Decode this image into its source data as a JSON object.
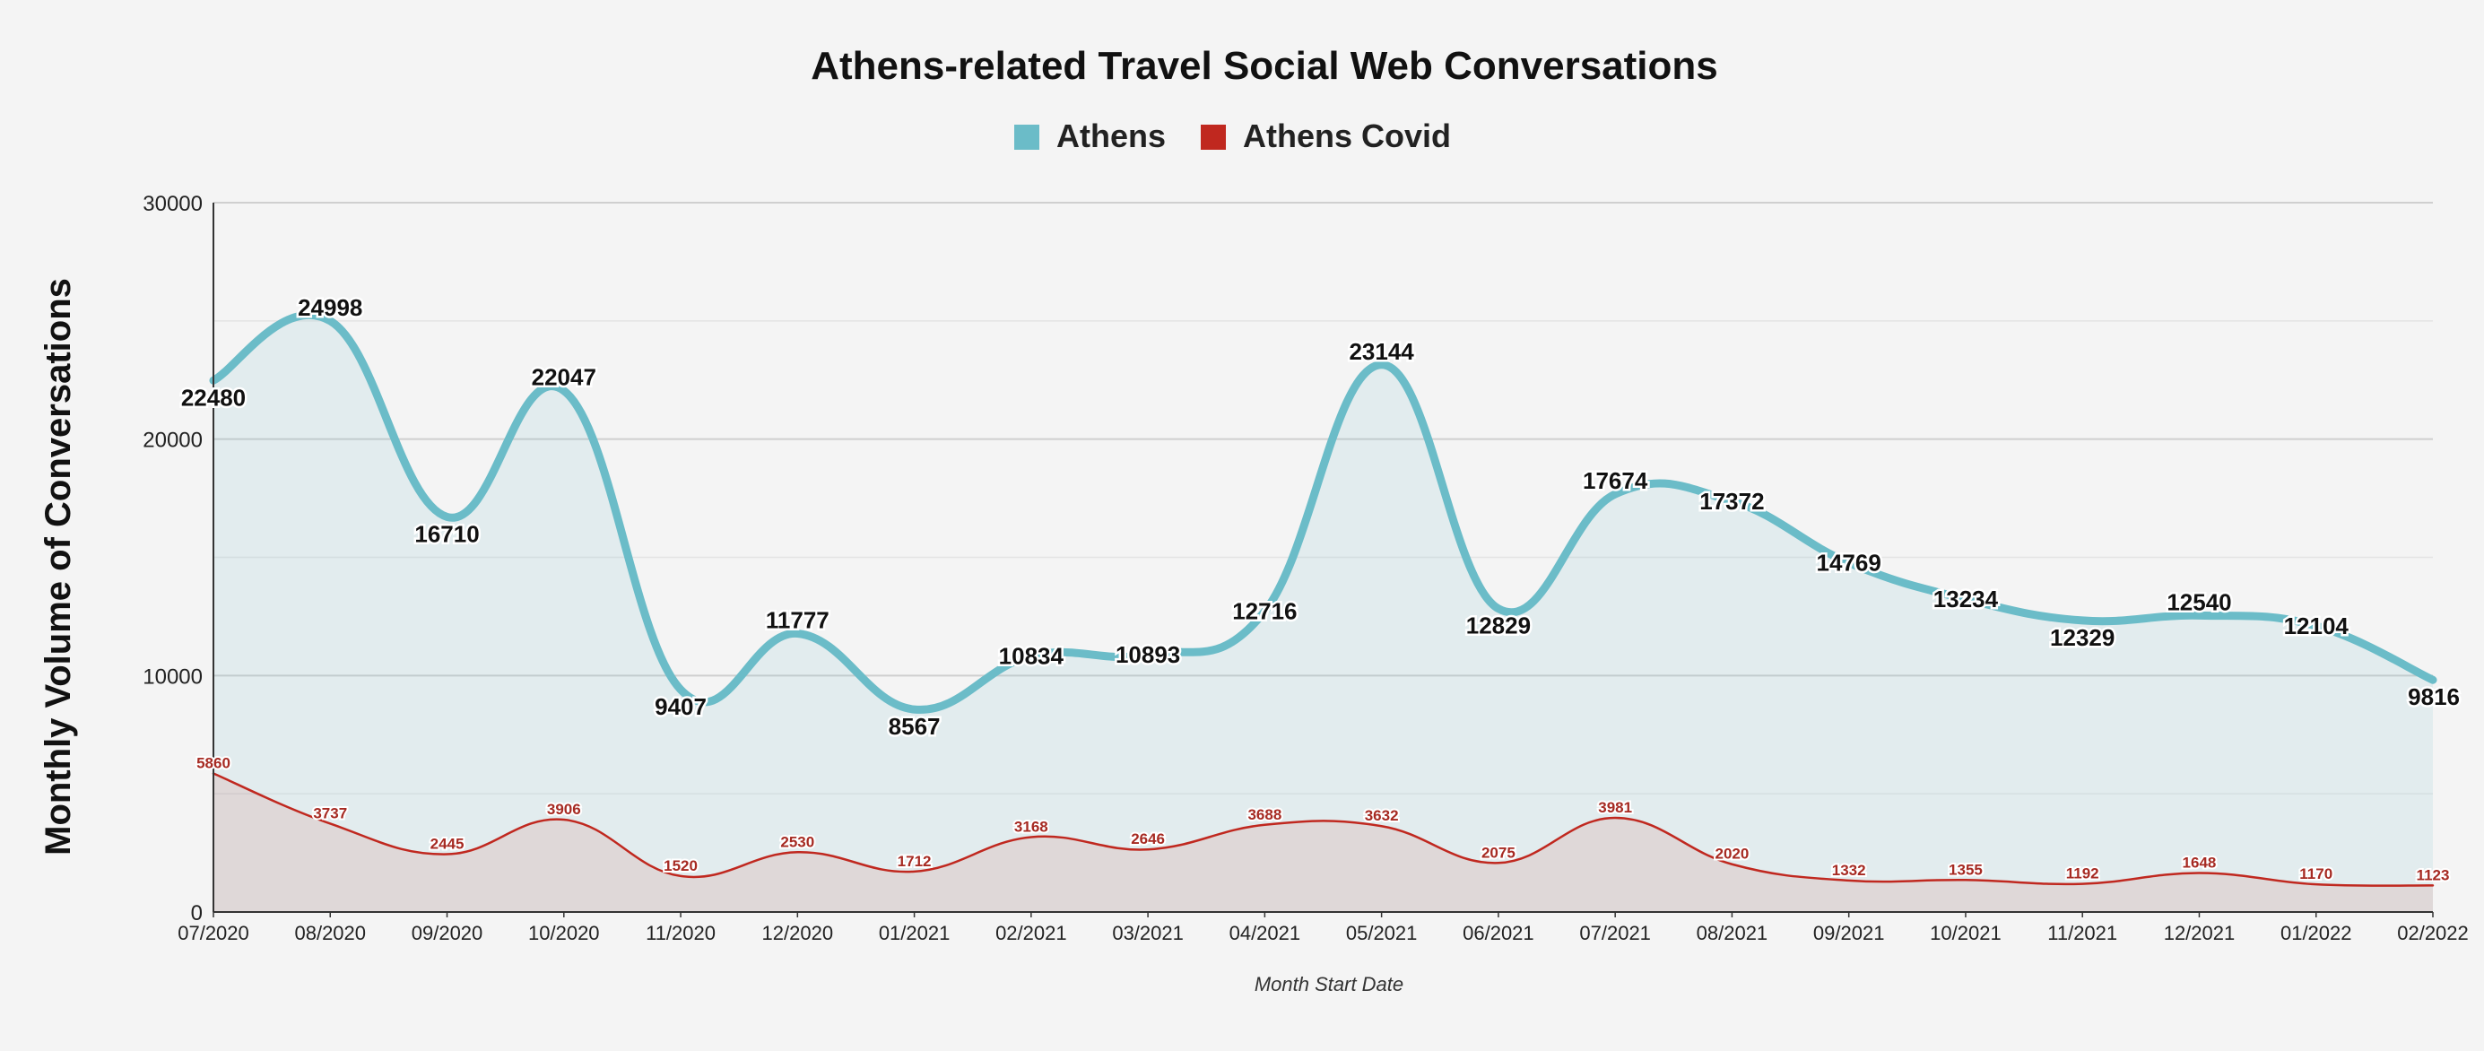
{
  "chart_data": {
    "type": "area",
    "title": "Athens-related Travel Social Web Conversations",
    "xlabel": "Month Start Date",
    "ylabel": "Monthly Volume of Conversations",
    "ylim": [
      0,
      30000
    ],
    "yticks": [
      "0",
      "10000",
      "20000",
      "30000"
    ],
    "grid": true,
    "legend_position": "top",
    "categories": [
      "07/2020",
      "08/2020",
      "09/2020",
      "10/2020",
      "11/2020",
      "12/2020",
      "01/2021",
      "02/2021",
      "03/2021",
      "04/2021",
      "05/2021",
      "06/2021",
      "07/2021",
      "08/2021",
      "09/2021",
      "10/2021",
      "11/2021",
      "12/2021",
      "01/2022",
      "02/2022"
    ],
    "series": [
      {
        "name": "Athens",
        "color": "#6bbcc8",
        "values": [
          22480,
          24998,
          16710,
          22047,
          9407,
          11777,
          8567,
          10834,
          10893,
          12716,
          23144,
          12829,
          17674,
          17372,
          14769,
          13234,
          12329,
          12540,
          12104,
          9816
        ]
      },
      {
        "name": "Athens Covid",
        "color": "#c0281f",
        "values": [
          5860,
          3737,
          2445,
          3906,
          1520,
          2530,
          1712,
          3168,
          2646,
          3688,
          3632,
          2075,
          3981,
          2020,
          1332,
          1355,
          1192,
          1648,
          1170,
          1123
        ]
      }
    ]
  }
}
